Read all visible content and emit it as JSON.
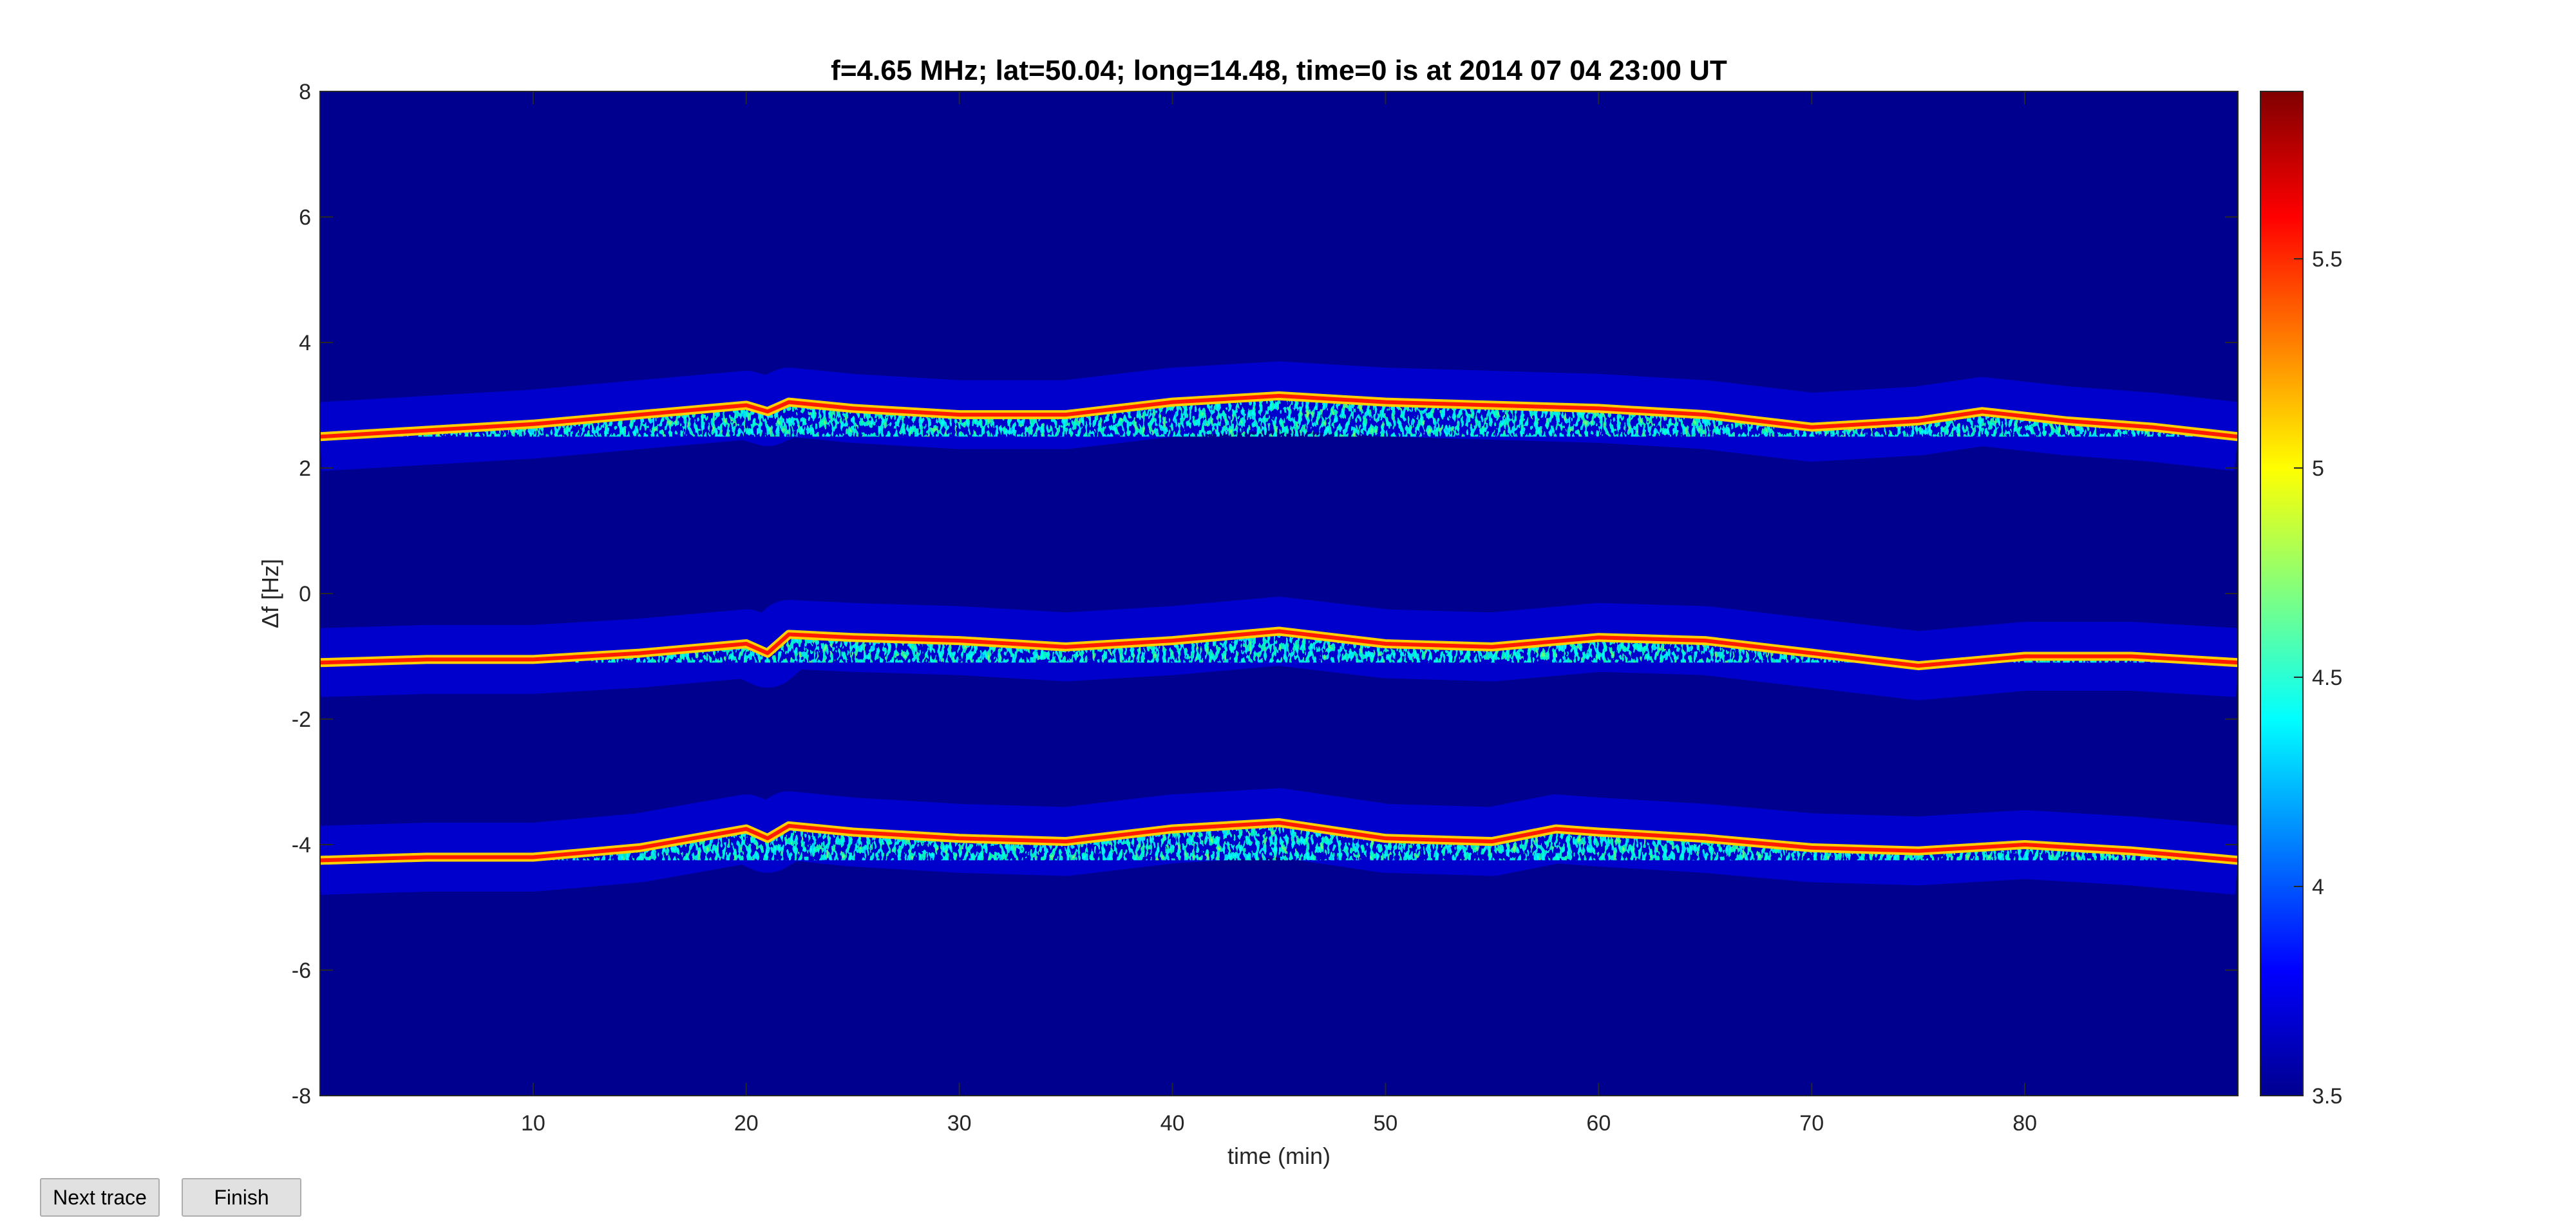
{
  "buttons": {
    "next_trace": "Next trace",
    "finish": "Finish"
  },
  "chart_data": {
    "type": "heatmap",
    "title": "f=4.65 MHz;  lat=50.04; long=14.48, time=0 is at 2014 07 04 23:00 UT",
    "xlabel": "time (min)",
    "ylabel": "Δf [Hz]",
    "xlim": [
      0,
      90
    ],
    "ylim": [
      -8,
      8
    ],
    "xticks": [
      10,
      20,
      30,
      40,
      50,
      60,
      70,
      80
    ],
    "yticks": [
      -8,
      -6,
      -4,
      -2,
      0,
      2,
      4,
      6,
      8
    ],
    "colormap": "jet",
    "background_color": "#00008f",
    "colorbar": {
      "clim": [
        3.5,
        5.9
      ],
      "ticks": [
        3.5,
        4,
        4.5,
        5,
        5.5
      ]
    },
    "traces": [
      {
        "x": [
          0,
          5,
          10,
          15,
          20,
          21,
          22,
          25,
          30,
          35,
          40,
          45,
          50,
          55,
          60,
          65,
          70,
          75,
          78,
          82,
          86,
          90
        ],
        "y": [
          2.5,
          2.6,
          2.7,
          2.85,
          3.0,
          2.9,
          3.05,
          2.95,
          2.85,
          2.85,
          3.05,
          3.15,
          3.05,
          3.0,
          2.95,
          2.85,
          2.65,
          2.75,
          2.9,
          2.75,
          2.65,
          2.5
        ]
      },
      {
        "x": [
          0,
          5,
          10,
          15,
          20,
          21,
          22,
          25,
          30,
          35,
          40,
          45,
          50,
          55,
          60,
          65,
          70,
          75,
          80,
          85,
          90
        ],
        "y": [
          -1.1,
          -1.05,
          -1.05,
          -0.95,
          -0.8,
          -0.95,
          -0.65,
          -0.7,
          -0.75,
          -0.85,
          -0.75,
          -0.6,
          -0.8,
          -0.85,
          -0.7,
          -0.75,
          -0.95,
          -1.15,
          -1.0,
          -1.0,
          -1.1
        ]
      },
      {
        "x": [
          0,
          5,
          10,
          15,
          20,
          21,
          22,
          25,
          30,
          35,
          40,
          45,
          50,
          55,
          58,
          60,
          65,
          70,
          75,
          80,
          85,
          90
        ],
        "y": [
          -4.25,
          -4.2,
          -4.2,
          -4.05,
          -3.75,
          -3.9,
          -3.7,
          -3.8,
          -3.9,
          -3.95,
          -3.75,
          -3.65,
          -3.9,
          -3.95,
          -3.75,
          -3.8,
          -3.9,
          -4.05,
          -4.1,
          -4.0,
          -4.1,
          -4.25
        ]
      }
    ]
  }
}
